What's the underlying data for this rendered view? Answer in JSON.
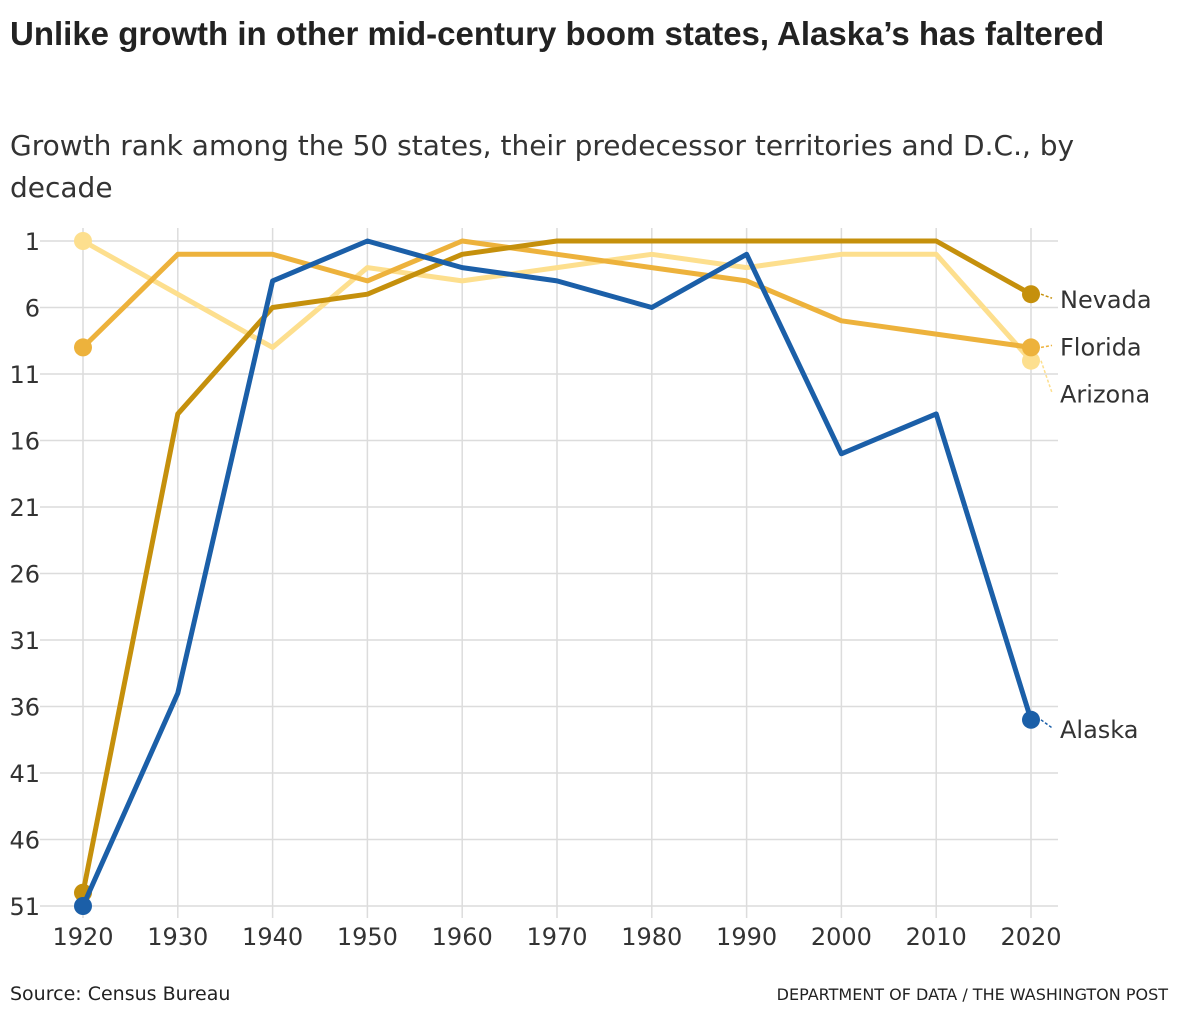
{
  "chart_data": {
    "type": "line",
    "title": "Unlike growth in other mid-century boom states, Alaska’s has faltered",
    "subtitle": "Growth rank among the 50 states, their predecessor territories and D.C., by decade",
    "xlabel": "",
    "ylabel": "",
    "x": [
      1920,
      1930,
      1940,
      1950,
      1960,
      1970,
      1980,
      1990,
      2000,
      2010,
      2020
    ],
    "y_ticks": [
      1,
      6,
      11,
      16,
      21,
      26,
      31,
      36,
      41,
      46,
      51
    ],
    "ylim": [
      1,
      51
    ],
    "y_reversed": true,
    "grid": true,
    "series": [
      {
        "name": "Arizona",
        "color": "#fddf8e",
        "values": [
          1,
          5,
          9,
          3,
          4,
          3,
          2,
          3,
          2,
          2,
          10
        ]
      },
      {
        "name": "Florida",
        "color": "#edb23c",
        "values": [
          9,
          2,
          2,
          4,
          1,
          2,
          3,
          4,
          7,
          8,
          9
        ]
      },
      {
        "name": "Nevada",
        "color": "#c5900c",
        "values": [
          50,
          14,
          6,
          5,
          2,
          1,
          1,
          1,
          1,
          1,
          5
        ]
      },
      {
        "name": "Alaska",
        "color": "#1b5fa8",
        "values": [
          51,
          35,
          4,
          1,
          3,
          4,
          6,
          2,
          17,
          14,
          37
        ]
      }
    ],
    "source": "Source: Census Bureau",
    "credit": "DEPARTMENT OF DATA / THE WASHINGTON POST"
  }
}
